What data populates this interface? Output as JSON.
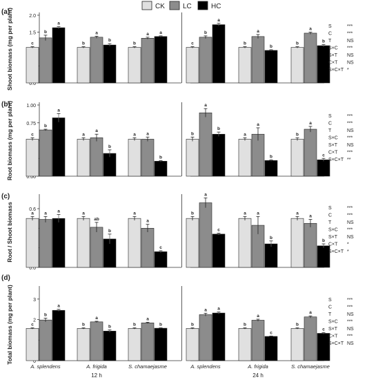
{
  "legend": [
    {
      "name": "CK",
      "color": "#e0e0e0"
    },
    {
      "name": "LC",
      "color": "#8c8c8c"
    },
    {
      "name": "HC",
      "color": "#000000"
    }
  ],
  "species": [
    "A. splendens",
    "A. frigida",
    "S. chamaejasme"
  ],
  "times": [
    "12 h",
    "24 h"
  ],
  "chart_data": [
    {
      "type": "bar",
      "panel": "(a)",
      "ylabel": "Shoot biomass (mg per plant)",
      "ylim": [
        0,
        2.0
      ],
      "yticks": [
        "0.0",
        "0.5",
        "1.0",
        "1.5",
        "2.0"
      ],
      "categories": [
        "A. splendens 12 h",
        "A. frigida 12 h",
        "S. chamaejasme 12 h",
        "A. splendens 24 h",
        "A. frigida 24 h",
        "S. chamaejasme 24 h"
      ],
      "series": [
        {
          "name": "CK",
          "values": [
            1.05,
            1.05,
            1.05,
            1.05,
            1.05,
            1.05
          ],
          "err": [
            0.02,
            0.02,
            0.02,
            0.02,
            0.02,
            0.02
          ],
          "letters": [
            "c",
            "b",
            "b",
            "c",
            "b",
            "b"
          ]
        },
        {
          "name": "LC",
          "values": [
            1.33,
            1.35,
            1.32,
            1.35,
            1.37,
            1.47
          ],
          "err": [
            0.08,
            0.03,
            0.03,
            0.04,
            0.06,
            0.03
          ],
          "letters": [
            "b",
            "a",
            "a",
            "b",
            "a",
            "a"
          ]
        },
        {
          "name": "HC",
          "values": [
            1.63,
            1.12,
            1.37,
            1.72,
            0.96,
            1.1
          ],
          "err": [
            0.03,
            0.04,
            0.02,
            0.04,
            0.02,
            0.03
          ],
          "letters": [
            "a",
            "b",
            "a",
            "a",
            "b",
            "b"
          ]
        }
      ],
      "stats": [
        {
          "label": "S",
          "sig": "***"
        },
        {
          "label": "C",
          "sig": "***"
        },
        {
          "label": "T",
          "sig": "NS"
        },
        {
          "label": "S×C",
          "sig": "***"
        },
        {
          "label": "S×T",
          "sig": "NS"
        },
        {
          "label": "C×T",
          "sig": "NS"
        },
        {
          "label": "S×C×T",
          "sig": "*"
        }
      ]
    },
    {
      "type": "bar",
      "panel": "(b)",
      "ylabel": "Root biomass (mg per plant)",
      "ylim": [
        0,
        1.0
      ],
      "yticks": [
        "0.00",
        "0.25",
        "0.50",
        "0.75",
        "1.00"
      ],
      "categories": [
        "A. splendens 12 h",
        "A. frigida 12 h",
        "S. chamaejasme 12 h",
        "A. splendens 24 h",
        "A. frigida 24 h",
        "S. chamaejasme 24 h"
      ],
      "series": [
        {
          "name": "CK",
          "values": [
            0.52,
            0.52,
            0.52,
            0.52,
            0.52,
            0.52
          ],
          "err": [
            0.02,
            0.02,
            0.02,
            0.03,
            0.02,
            0.02
          ],
          "letters": [
            "c",
            "a",
            "a",
            "b",
            "a",
            "b"
          ]
        },
        {
          "name": "LC",
          "values": [
            0.65,
            0.54,
            0.52,
            0.89,
            0.59,
            0.66
          ],
          "err": [
            0.01,
            0.05,
            0.03,
            0.06,
            0.09,
            0.04
          ],
          "letters": [
            "b",
            "a",
            "a",
            "a",
            "a",
            "a"
          ]
        },
        {
          "name": "HC",
          "values": [
            0.82,
            0.32,
            0.21,
            0.59,
            0.22,
            0.23
          ],
          "err": [
            0.06,
            0.05,
            0.01,
            0.03,
            0.01,
            0.02
          ],
          "letters": [
            "a",
            "b",
            "b",
            "b",
            "b",
            "c"
          ]
        }
      ],
      "stats": [
        {
          "label": "S",
          "sig": "***"
        },
        {
          "label": "C",
          "sig": "***"
        },
        {
          "label": "T",
          "sig": "NS"
        },
        {
          "label": "S×C",
          "sig": "***"
        },
        {
          "label": "S×T",
          "sig": "NS"
        },
        {
          "label": "C×T",
          "sig": "***"
        },
        {
          "label": "S×C×T",
          "sig": "**"
        }
      ]
    },
    {
      "type": "bar",
      "panel": "(c)",
      "ylabel": "Root / Shoot biomass",
      "ylim": [
        0,
        0.72
      ],
      "yticks": [
        "0.0",
        "0.2",
        "0.4",
        "0.6"
      ],
      "categories": [
        "A. splendens 12 h",
        "A. frigida 12 h",
        "S. chamaejasme 12 h",
        "A. splendens 24 h",
        "A. frigida 24 h",
        "S. chamaejasme 24 h"
      ],
      "series": [
        {
          "name": "CK",
          "values": [
            0.5,
            0.5,
            0.5,
            0.5,
            0.5,
            0.5
          ],
          "err": [
            0.02,
            0.02,
            0.02,
            0.02,
            0.02,
            0.02
          ],
          "letters": [
            "a",
            "a",
            "a",
            "b",
            "a",
            "a"
          ]
        },
        {
          "name": "LC",
          "values": [
            0.49,
            0.41,
            0.4,
            0.66,
            0.43,
            0.45
          ],
          "err": [
            0.03,
            0.05,
            0.04,
            0.05,
            0.09,
            0.04
          ],
          "letters": [
            "a",
            "ab",
            "a",
            "a",
            "a",
            "a"
          ]
        },
        {
          "name": "HC",
          "values": [
            0.5,
            0.29,
            0.16,
            0.34,
            0.24,
            0.22
          ],
          "err": [
            0.04,
            0.05,
            0.01,
            0.01,
            0.03,
            0.02
          ],
          "letters": [
            "a",
            "b",
            "c",
            "c",
            "b",
            "b"
          ]
        }
      ],
      "stats": [
        {
          "label": "S",
          "sig": "***"
        },
        {
          "label": "C",
          "sig": "***"
        },
        {
          "label": "T",
          "sig": "NS"
        },
        {
          "label": "S×C",
          "sig": "***"
        },
        {
          "label": "S×T",
          "sig": "NS"
        },
        {
          "label": "C×T",
          "sig": "*"
        },
        {
          "label": "S×C×T",
          "sig": "*"
        }
      ]
    },
    {
      "type": "bar",
      "panel": "(d)",
      "ylabel": "Total biomass (mg per plant)",
      "ylim": [
        0,
        3.5
      ],
      "yticks": [
        "0",
        "1",
        "2",
        "3"
      ],
      "categories": [
        "A. splendens 12 h",
        "A. frigida 12 h",
        "S. chamaejasme 12 h",
        "A. splendens 24 h",
        "A. frigida 24 h",
        "S. chamaejasme 24 h"
      ],
      "series": [
        {
          "name": "CK",
          "values": [
            1.57,
            1.57,
            1.57,
            1.57,
            1.57,
            1.57
          ],
          "err": [
            0.03,
            0.03,
            0.03,
            0.03,
            0.03,
            0.03
          ],
          "letters": [
            "c",
            "b",
            "b",
            "b",
            "b",
            "b"
          ]
        },
        {
          "name": "LC",
          "values": [
            1.98,
            1.89,
            1.84,
            2.24,
            1.97,
            2.13
          ],
          "err": [
            0.09,
            0.03,
            0.03,
            0.07,
            0.05,
            0.05
          ],
          "letters": [
            "b",
            "a",
            "a",
            "a",
            "a",
            "a"
          ]
        },
        {
          "name": "HC",
          "values": [
            2.45,
            1.44,
            1.58,
            2.32,
            1.18,
            1.33
          ],
          "err": [
            0.05,
            0.06,
            0.02,
            0.05,
            0.02,
            0.04
          ],
          "letters": [
            "a",
            "b",
            "b",
            "a",
            "c",
            "c"
          ]
        }
      ],
      "stats": [
        {
          "label": "S",
          "sig": "***"
        },
        {
          "label": "C",
          "sig": "***"
        },
        {
          "label": "T",
          "sig": "NS"
        },
        {
          "label": "S×C",
          "sig": "***"
        },
        {
          "label": "S×T",
          "sig": "NS"
        },
        {
          "label": "C×T",
          "sig": "***"
        },
        {
          "label": "S×C×T",
          "sig": "NS"
        }
      ]
    }
  ]
}
